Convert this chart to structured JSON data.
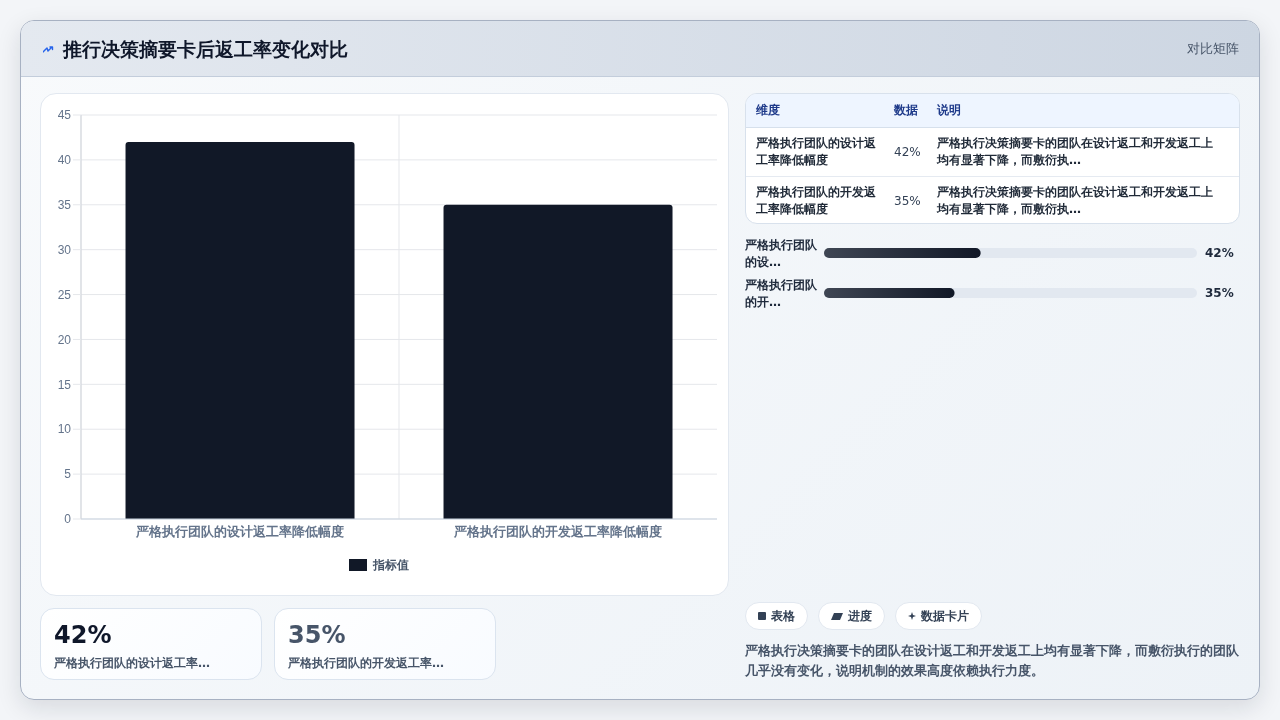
{
  "chart_data": [
    {
      "type": "bar",
      "title": "推行决策摘要卡后返工率变化对比",
      "categories": [
        "严格执行团队的设计返工率降低幅度",
        "严格执行团队的开发返工率降低幅度"
      ],
      "series": [
        {
          "name": "指标值",
          "color": "#111827",
          "values": [
            42,
            35
          ]
        }
      ],
      "ylim": [
        0,
        45
      ],
      "yticks": [
        0,
        5,
        10,
        15,
        20,
        25,
        30,
        35,
        40,
        45
      ],
      "grid": true,
      "legend": "bottom",
      "annotations": [
        "对比矩阵"
      ]
    },
    {
      "type": "other",
      "annotations": [
        "维度",
        "数据",
        "说明",
        "严格执行团队的设计返工率降低幅度",
        "42%",
        "严格执行决策摘要卡的团队在设计返工和开发返工上均有显著下降，而敷衍执…",
        "严格执行团队的开发返工率降低幅度",
        "35%",
        "严格执行决策摘要卡的团队在设计返工和开发返工上均有显著下降，而敷衍执…"
      ]
    },
    {
      "type": "bar",
      "orientation": "horizontal",
      "categories": [
        "严格执行团队的设…",
        "严格执行团队的开…"
      ],
      "values": [
        42,
        35
      ],
      "color": "#111827",
      "value_labels": [
        "42%",
        "35%"
      ],
      "xlim": [
        0,
        100
      ],
      "tick_labels": "y"
    },
    {
      "type": "other",
      "annotations": [
        "42%",
        "严格执行团队的设计返工率…",
        "35%",
        "严格执行团队的开发返工率…"
      ]
    },
    {
      "type": "other",
      "annotations": [
        "表格",
        "进度",
        "数据卡片",
        "严格执行决策摘要卡的团队在设计返工和开发返工上均有显著下降，而敷衍执行的团队几乎没有变化，说明机制的效果高度依赖执行力度。"
      ]
    }
  ]
}
